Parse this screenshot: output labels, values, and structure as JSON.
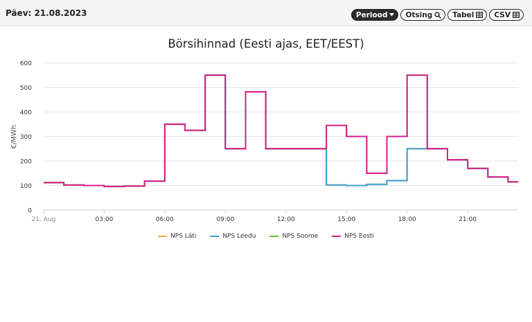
{
  "header": {
    "date_label": "Päev: 21.08.2023",
    "buttons": {
      "period": "Periood",
      "search": "Otsing",
      "table": "Tabel",
      "csv": "CSV"
    }
  },
  "chart_data": {
    "type": "line",
    "title": "Börsihinnad (Eesti ajas, EET/EEST)",
    "ylabel": "€/MWh",
    "xlabel": "",
    "ylim": [
      0,
      600
    ],
    "yticks": [
      0,
      100,
      200,
      300,
      400,
      500,
      600
    ],
    "xlim": [
      0,
      23.5
    ],
    "xticks": [
      {
        "value": 0,
        "label": "21. Aug"
      },
      {
        "value": 3,
        "label": "03:00"
      },
      {
        "value": 6,
        "label": "06:00"
      },
      {
        "value": 9,
        "label": "09:00"
      },
      {
        "value": 12,
        "label": "12:00"
      },
      {
        "value": 15,
        "label": "15:00"
      },
      {
        "value": 18,
        "label": "18:00"
      },
      {
        "value": 21,
        "label": "21:00"
      }
    ],
    "grid": true,
    "legend_position": "bottom",
    "x": [
      0,
      1,
      2,
      3,
      4,
      5,
      6,
      7,
      8,
      9,
      10,
      11,
      12,
      13,
      14,
      15,
      16,
      17,
      18,
      19,
      20,
      21,
      22,
      23
    ],
    "series": [
      {
        "name": "NPS Läti",
        "color": "#f7a531",
        "values": [
          112,
          102,
          100,
          96,
          98,
          118,
          350,
          325,
          550,
          250,
          482,
          250,
          250,
          250,
          102,
          100,
          105,
          120,
          250,
          250,
          205,
          170,
          135,
          115
        ]
      },
      {
        "name": "NPS Leedu",
        "color": "#3a9fd6",
        "values": [
          112,
          102,
          100,
          96,
          98,
          118,
          350,
          325,
          550,
          250,
          482,
          250,
          250,
          250,
          102,
          100,
          105,
          120,
          250,
          250,
          205,
          170,
          135,
          115
        ]
      },
      {
        "name": "NPS Soome",
        "color": "#76b82a",
        "values": [
          112,
          102,
          100,
          96,
          98,
          118,
          350,
          325,
          550,
          250,
          482,
          250,
          250,
          250,
          345,
          300,
          150,
          300,
          550,
          250,
          205,
          170,
          135,
          115
        ]
      },
      {
        "name": "NPS Eesti",
        "color": "#d61e8c",
        "values": [
          112,
          102,
          100,
          96,
          98,
          118,
          350,
          325,
          550,
          250,
          482,
          250,
          250,
          250,
          345,
          300,
          150,
          300,
          550,
          250,
          205,
          170,
          135,
          115
        ]
      }
    ]
  }
}
